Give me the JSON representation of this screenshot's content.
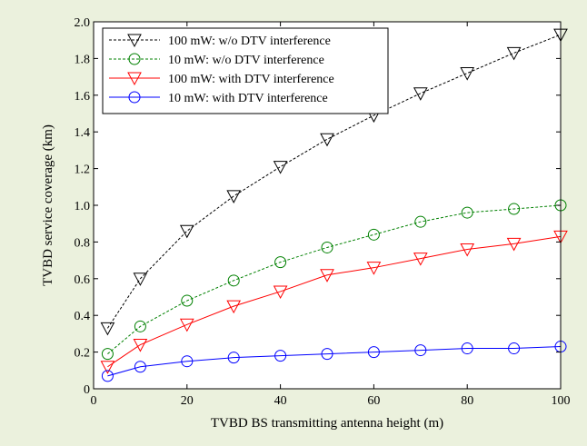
{
  "chart_data": {
    "type": "line",
    "title": "",
    "xlabel": "TVBD BS transmitting antenna height (m)",
    "ylabel": "TVBD service coverage (km)",
    "xlim": [
      0,
      100
    ],
    "ylim": [
      0,
      2.0
    ],
    "grid": false,
    "legend_position": "top-left",
    "xticks": [
      0,
      20,
      40,
      60,
      80,
      100
    ],
    "xtick_labels": [
      "0",
      "20",
      "40",
      "60",
      "80",
      "100"
    ],
    "yticks": [
      0,
      0.2,
      0.4,
      0.6,
      0.8,
      1.0,
      1.2,
      1.4,
      1.6,
      1.8,
      2.0
    ],
    "ytick_labels": [
      "0",
      "0.2",
      "0.4",
      "0.6",
      "0.8",
      "1.0",
      "1.2",
      "1.4",
      "1.6",
      "1.8",
      "2.0"
    ],
    "x": [
      3,
      10,
      20,
      30,
      40,
      50,
      60,
      70,
      80,
      90,
      100
    ],
    "series": [
      {
        "name": "100 mW: w/o DTV interference",
        "color": "#000000",
        "marker": "triangle-down",
        "line_style": "dashed",
        "values": [
          0.33,
          0.6,
          0.86,
          1.05,
          1.21,
          1.36,
          1.49,
          1.61,
          1.72,
          1.83,
          1.93
        ]
      },
      {
        "name": "10 mW: w/o DTV interference",
        "color": "#008000",
        "marker": "circle",
        "line_style": "dashed",
        "values": [
          0.19,
          0.34,
          0.48,
          0.59,
          0.69,
          0.77,
          0.84,
          0.91,
          0.96,
          0.98,
          1.0
        ]
      },
      {
        "name": "100 mW: with DTV interference",
        "color": "#ff0000",
        "marker": "triangle-down",
        "line_style": "solid",
        "values": [
          0.12,
          0.24,
          0.35,
          0.45,
          0.53,
          0.62,
          0.66,
          0.71,
          0.76,
          0.79,
          0.83
        ]
      },
      {
        "name": "10 mW: with DTV interference",
        "color": "#0000ff",
        "marker": "circle",
        "line_style": "solid",
        "values": [
          0.07,
          0.12,
          0.15,
          0.17,
          0.18,
          0.19,
          0.2,
          0.21,
          0.22,
          0.22,
          0.23
        ]
      }
    ]
  }
}
